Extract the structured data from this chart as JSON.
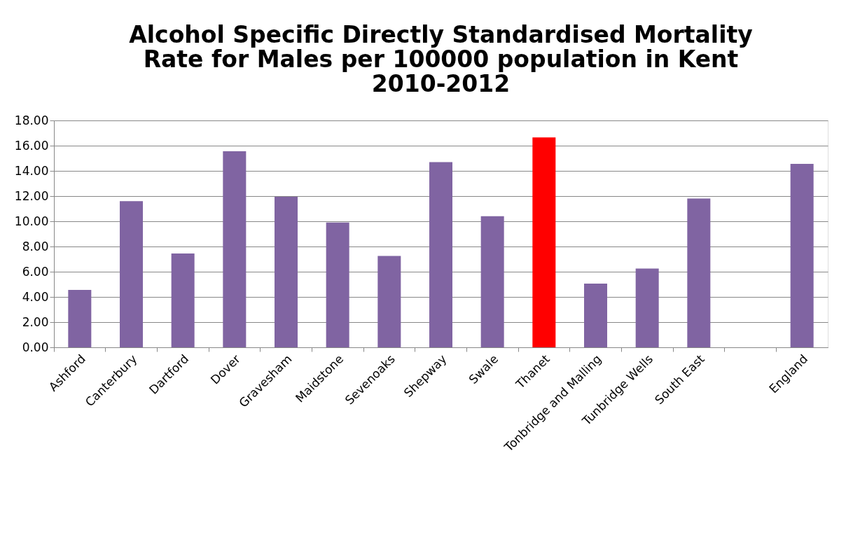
{
  "chart_data": {
    "type": "bar",
    "title": [
      "Alcohol Specific Directly Standardised Mortality",
      "Rate for Males per 100000 population in Kent",
      "2010-2012"
    ],
    "categories": [
      "Ashford",
      "Canterbury",
      "Dartford",
      "Dover",
      "Gravesham",
      "Maidstone",
      "Sevenoaks",
      "Shepway",
      "Swale",
      "Thanet",
      "Tonbridge and Malling",
      "Tunbridge Wells",
      "South East",
      null,
      "England"
    ],
    "values": [
      4.55,
      11.6,
      7.45,
      15.55,
      11.95,
      9.9,
      7.25,
      14.7,
      10.4,
      16.65,
      5.05,
      6.25,
      11.8,
      null,
      14.55
    ],
    "colors": [
      "#8064a2",
      "#8064a2",
      "#8064a2",
      "#8064a2",
      "#8064a2",
      "#8064a2",
      "#8064a2",
      "#8064a2",
      "#8064a2",
      "#ff0000",
      "#8064a2",
      "#8064a2",
      "#8064a2",
      "#8064a2",
      "#8064a2"
    ],
    "ylim": [
      0,
      18
    ],
    "yticks": [
      {
        "value": 0,
        "label": "0.00"
      },
      {
        "value": 2,
        "label": "2.00"
      },
      {
        "value": 4,
        "label": "4.00"
      },
      {
        "value": 6,
        "label": "6.00"
      },
      {
        "value": 8,
        "label": "8.00"
      },
      {
        "value": 10,
        "label": "10.00"
      },
      {
        "value": 12,
        "label": "12.00"
      },
      {
        "value": 14,
        "label": "14.00"
      },
      {
        "value": 16,
        "label": "16.00"
      },
      {
        "value": 18,
        "label": "18.00"
      }
    ],
    "grid": "y",
    "legend": false
  }
}
